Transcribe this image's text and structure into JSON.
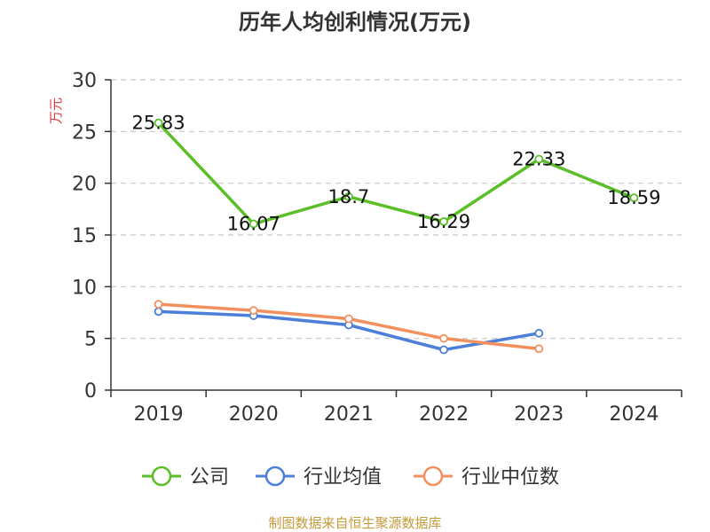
{
  "chart_data": {
    "type": "line",
    "title": "历年人均创利情况(万元)",
    "ylabel": "万元",
    "categories": [
      "2019",
      "2020",
      "2021",
      "2022",
      "2023",
      "2024"
    ],
    "ylim": [
      0,
      30
    ],
    "yticks": [
      0,
      5,
      10,
      15,
      20,
      25,
      30
    ],
    "grid": true,
    "legend_position": "bottom",
    "series": [
      {
        "name": "公司",
        "color": "#5cbf29",
        "values": [
          25.83,
          16.07,
          18.7,
          16.29,
          22.33,
          18.59
        ],
        "labels": [
          "25.83",
          "16.07",
          "18.7",
          "16.29",
          "22.33",
          "18.59"
        ]
      },
      {
        "name": "行业均值",
        "color": "#4c7fd9",
        "values": [
          7.6,
          7.2,
          6.3,
          3.9,
          5.5,
          null
        ]
      },
      {
        "name": "行业中位数",
        "color": "#f2915d",
        "values": [
          8.3,
          7.7,
          6.9,
          5.0,
          4.0,
          null
        ]
      }
    ],
    "source": "制图数据来自恒生聚源数据库",
    "source_color": "#c49a3a",
    "ylabel_color": "#e03a3a"
  }
}
